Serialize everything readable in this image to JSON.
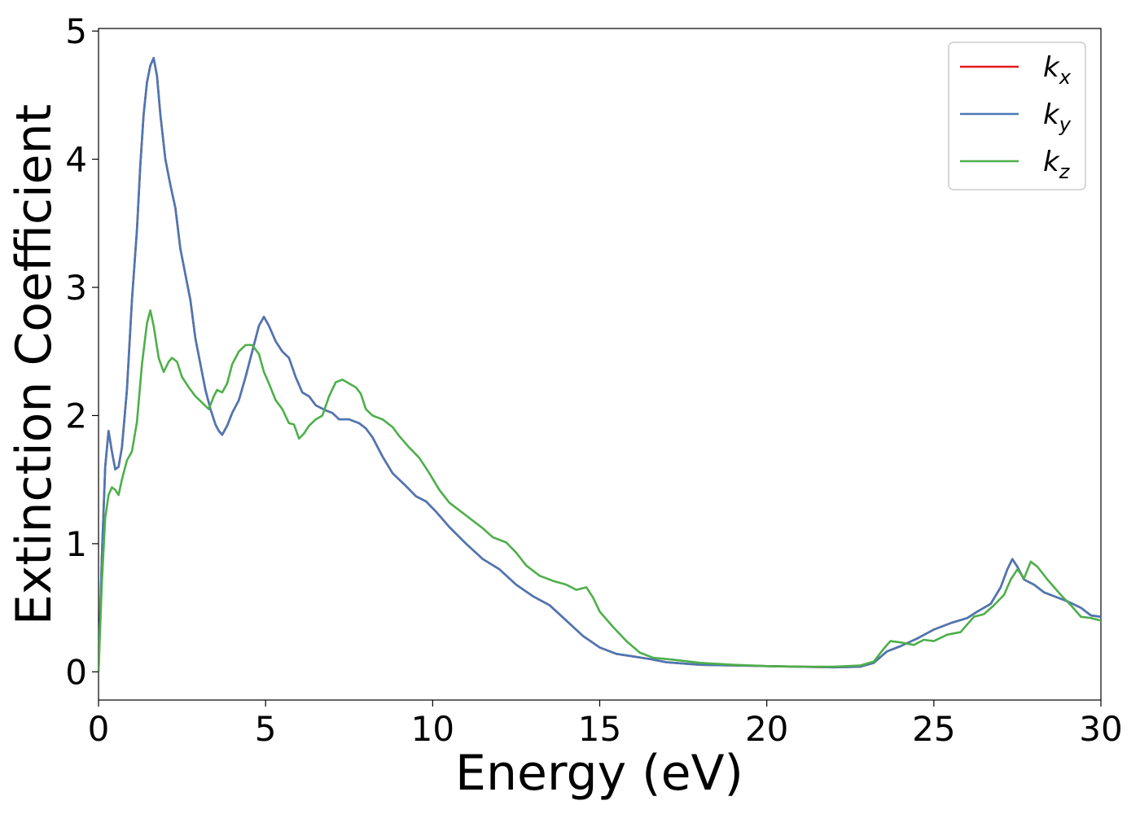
{
  "chart_data": {
    "type": "line",
    "xlabel": "Energy (eV)",
    "ylabel": "Extinction Coefficient",
    "xlim": [
      0,
      30
    ],
    "ylim": [
      -0.22,
      5.02
    ],
    "xticks": [
      0,
      5,
      10,
      15,
      20,
      25,
      30
    ],
    "xtick_labels": [
      "0",
      "5",
      "10",
      "15",
      "20",
      "25",
      "30"
    ],
    "yticks": [
      0,
      1,
      2,
      3,
      4,
      5
    ],
    "ytick_labels": [
      "0",
      "1",
      "2",
      "3",
      "4",
      "5"
    ],
    "grid": false,
    "legend_position": "top-right",
    "series": [
      {
        "name": "k_x",
        "legend_base": "k",
        "legend_sub": "x",
        "color": "#e41a1c",
        "points": [
          [
            0,
            0
          ],
          [
            0.1,
            0.9
          ],
          [
            0.2,
            1.6
          ],
          [
            0.3,
            1.88
          ],
          [
            0.4,
            1.72
          ],
          [
            0.5,
            1.58
          ],
          [
            0.6,
            1.6
          ],
          [
            0.7,
            1.75
          ],
          [
            0.85,
            2.2
          ],
          [
            1.0,
            2.9
          ],
          [
            1.15,
            3.45
          ],
          [
            1.25,
            3.95
          ],
          [
            1.35,
            4.35
          ],
          [
            1.45,
            4.6
          ],
          [
            1.55,
            4.73
          ],
          [
            1.65,
            4.79
          ],
          [
            1.75,
            4.65
          ],
          [
            1.85,
            4.35
          ],
          [
            2.0,
            4.0
          ],
          [
            2.15,
            3.8
          ],
          [
            2.3,
            3.62
          ],
          [
            2.45,
            3.3
          ],
          [
            2.6,
            3.1
          ],
          [
            2.75,
            2.9
          ],
          [
            2.9,
            2.6
          ],
          [
            3.05,
            2.4
          ],
          [
            3.2,
            2.2
          ],
          [
            3.35,
            2.05
          ],
          [
            3.5,
            1.93
          ],
          [
            3.6,
            1.88
          ],
          [
            3.7,
            1.85
          ],
          [
            3.85,
            1.92
          ],
          [
            4.0,
            2.02
          ],
          [
            4.2,
            2.12
          ],
          [
            4.4,
            2.3
          ],
          [
            4.6,
            2.5
          ],
          [
            4.8,
            2.7
          ],
          [
            4.95,
            2.77
          ],
          [
            5.1,
            2.7
          ],
          [
            5.3,
            2.58
          ],
          [
            5.5,
            2.5
          ],
          [
            5.7,
            2.45
          ],
          [
            5.9,
            2.3
          ],
          [
            6.1,
            2.18
          ],
          [
            6.3,
            2.15
          ],
          [
            6.5,
            2.08
          ],
          [
            6.8,
            2.04
          ],
          [
            7.0,
            2.02
          ],
          [
            7.2,
            1.97
          ],
          [
            7.5,
            1.97
          ],
          [
            7.8,
            1.94
          ],
          [
            8.0,
            1.9
          ],
          [
            8.2,
            1.83
          ],
          [
            8.5,
            1.68
          ],
          [
            8.8,
            1.55
          ],
          [
            9.2,
            1.45
          ],
          [
            9.5,
            1.37
          ],
          [
            9.8,
            1.33
          ],
          [
            10.1,
            1.25
          ],
          [
            10.5,
            1.13
          ],
          [
            11.0,
            1.0
          ],
          [
            11.5,
            0.88
          ],
          [
            12.0,
            0.8
          ],
          [
            12.5,
            0.68
          ],
          [
            13.0,
            0.59
          ],
          [
            13.5,
            0.52
          ],
          [
            14.0,
            0.4
          ],
          [
            14.5,
            0.28
          ],
          [
            15.0,
            0.19
          ],
          [
            15.5,
            0.14
          ],
          [
            16.0,
            0.12
          ],
          [
            16.5,
            0.1
          ],
          [
            17.0,
            0.075
          ],
          [
            18.0,
            0.055
          ],
          [
            19.0,
            0.05
          ],
          [
            20.0,
            0.045
          ],
          [
            21.0,
            0.04
          ],
          [
            22.0,
            0.035
          ],
          [
            22.8,
            0.04
          ],
          [
            23.2,
            0.07
          ],
          [
            23.6,
            0.16
          ],
          [
            24.0,
            0.2
          ],
          [
            24.5,
            0.26
          ],
          [
            25.0,
            0.33
          ],
          [
            25.5,
            0.38
          ],
          [
            26.0,
            0.42
          ],
          [
            26.3,
            0.47
          ],
          [
            26.7,
            0.53
          ],
          [
            27.0,
            0.66
          ],
          [
            27.2,
            0.8
          ],
          [
            27.35,
            0.88
          ],
          [
            27.5,
            0.82
          ],
          [
            27.7,
            0.72
          ],
          [
            28.0,
            0.68
          ],
          [
            28.3,
            0.62
          ],
          [
            28.7,
            0.58
          ],
          [
            29.0,
            0.55
          ],
          [
            29.4,
            0.5
          ],
          [
            29.7,
            0.44
          ],
          [
            30.0,
            0.43
          ]
        ]
      },
      {
        "name": "k_y",
        "legend_base": "k",
        "legend_sub": "y",
        "color": "#4a78b4",
        "points": [
          [
            0,
            0
          ],
          [
            0.1,
            0.9
          ],
          [
            0.2,
            1.6
          ],
          [
            0.3,
            1.88
          ],
          [
            0.4,
            1.72
          ],
          [
            0.5,
            1.58
          ],
          [
            0.6,
            1.6
          ],
          [
            0.7,
            1.75
          ],
          [
            0.85,
            2.2
          ],
          [
            1.0,
            2.9
          ],
          [
            1.15,
            3.45
          ],
          [
            1.25,
            3.95
          ],
          [
            1.35,
            4.35
          ],
          [
            1.45,
            4.6
          ],
          [
            1.55,
            4.73
          ],
          [
            1.65,
            4.79
          ],
          [
            1.75,
            4.65
          ],
          [
            1.85,
            4.35
          ],
          [
            2.0,
            4.0
          ],
          [
            2.15,
            3.8
          ],
          [
            2.3,
            3.62
          ],
          [
            2.45,
            3.3
          ],
          [
            2.6,
            3.1
          ],
          [
            2.75,
            2.9
          ],
          [
            2.9,
            2.6
          ],
          [
            3.05,
            2.4
          ],
          [
            3.2,
            2.2
          ],
          [
            3.35,
            2.05
          ],
          [
            3.5,
            1.93
          ],
          [
            3.6,
            1.88
          ],
          [
            3.7,
            1.85
          ],
          [
            3.85,
            1.92
          ],
          [
            4.0,
            2.02
          ],
          [
            4.2,
            2.12
          ],
          [
            4.4,
            2.3
          ],
          [
            4.6,
            2.5
          ],
          [
            4.8,
            2.7
          ],
          [
            4.95,
            2.77
          ],
          [
            5.1,
            2.7
          ],
          [
            5.3,
            2.58
          ],
          [
            5.5,
            2.5
          ],
          [
            5.7,
            2.45
          ],
          [
            5.9,
            2.3
          ],
          [
            6.1,
            2.18
          ],
          [
            6.3,
            2.15
          ],
          [
            6.5,
            2.08
          ],
          [
            6.8,
            2.04
          ],
          [
            7.0,
            2.02
          ],
          [
            7.2,
            1.97
          ],
          [
            7.5,
            1.97
          ],
          [
            7.8,
            1.94
          ],
          [
            8.0,
            1.9
          ],
          [
            8.2,
            1.83
          ],
          [
            8.5,
            1.68
          ],
          [
            8.8,
            1.55
          ],
          [
            9.2,
            1.45
          ],
          [
            9.5,
            1.37
          ],
          [
            9.8,
            1.33
          ],
          [
            10.1,
            1.25
          ],
          [
            10.5,
            1.13
          ],
          [
            11.0,
            1.0
          ],
          [
            11.5,
            0.88
          ],
          [
            12.0,
            0.8
          ],
          [
            12.5,
            0.68
          ],
          [
            13.0,
            0.59
          ],
          [
            13.5,
            0.52
          ],
          [
            14.0,
            0.4
          ],
          [
            14.5,
            0.28
          ],
          [
            15.0,
            0.19
          ],
          [
            15.5,
            0.14
          ],
          [
            16.0,
            0.12
          ],
          [
            16.5,
            0.1
          ],
          [
            17.0,
            0.075
          ],
          [
            18.0,
            0.055
          ],
          [
            19.0,
            0.05
          ],
          [
            20.0,
            0.045
          ],
          [
            21.0,
            0.04
          ],
          [
            22.0,
            0.035
          ],
          [
            22.8,
            0.04
          ],
          [
            23.2,
            0.07
          ],
          [
            23.6,
            0.16
          ],
          [
            24.0,
            0.2
          ],
          [
            24.5,
            0.26
          ],
          [
            25.0,
            0.33
          ],
          [
            25.5,
            0.38
          ],
          [
            26.0,
            0.42
          ],
          [
            26.3,
            0.47
          ],
          [
            26.7,
            0.53
          ],
          [
            27.0,
            0.66
          ],
          [
            27.2,
            0.8
          ],
          [
            27.35,
            0.88
          ],
          [
            27.5,
            0.82
          ],
          [
            27.7,
            0.72
          ],
          [
            28.0,
            0.68
          ],
          [
            28.3,
            0.62
          ],
          [
            28.7,
            0.58
          ],
          [
            29.0,
            0.55
          ],
          [
            29.4,
            0.5
          ],
          [
            29.7,
            0.44
          ],
          [
            30.0,
            0.43
          ]
        ]
      },
      {
        "name": "k_z",
        "legend_base": "k",
        "legend_sub": "z",
        "color": "#4daf4a",
        "points": [
          [
            0,
            0
          ],
          [
            0.1,
            0.7
          ],
          [
            0.2,
            1.2
          ],
          [
            0.3,
            1.38
          ],
          [
            0.4,
            1.44
          ],
          [
            0.5,
            1.42
          ],
          [
            0.6,
            1.38
          ],
          [
            0.7,
            1.5
          ],
          [
            0.85,
            1.65
          ],
          [
            1.0,
            1.72
          ],
          [
            1.15,
            1.95
          ],
          [
            1.3,
            2.4
          ],
          [
            1.45,
            2.72
          ],
          [
            1.55,
            2.82
          ],
          [
            1.65,
            2.7
          ],
          [
            1.8,
            2.45
          ],
          [
            1.95,
            2.34
          ],
          [
            2.1,
            2.42
          ],
          [
            2.2,
            2.45
          ],
          [
            2.35,
            2.42
          ],
          [
            2.5,
            2.3
          ],
          [
            2.7,
            2.22
          ],
          [
            2.9,
            2.15
          ],
          [
            3.1,
            2.1
          ],
          [
            3.3,
            2.05
          ],
          [
            3.45,
            2.15
          ],
          [
            3.55,
            2.2
          ],
          [
            3.7,
            2.18
          ],
          [
            3.85,
            2.25
          ],
          [
            4.0,
            2.4
          ],
          [
            4.2,
            2.5
          ],
          [
            4.4,
            2.55
          ],
          [
            4.6,
            2.55
          ],
          [
            4.8,
            2.48
          ],
          [
            4.95,
            2.34
          ],
          [
            5.1,
            2.25
          ],
          [
            5.3,
            2.12
          ],
          [
            5.5,
            2.05
          ],
          [
            5.7,
            1.94
          ],
          [
            5.85,
            1.93
          ],
          [
            6.0,
            1.82
          ],
          [
            6.15,
            1.86
          ],
          [
            6.3,
            1.92
          ],
          [
            6.5,
            1.97
          ],
          [
            6.7,
            2.0
          ],
          [
            6.9,
            2.15
          ],
          [
            7.1,
            2.26
          ],
          [
            7.3,
            2.28
          ],
          [
            7.5,
            2.25
          ],
          [
            7.7,
            2.22
          ],
          [
            7.85,
            2.17
          ],
          [
            8.0,
            2.05
          ],
          [
            8.2,
            2.0
          ],
          [
            8.5,
            1.97
          ],
          [
            8.8,
            1.91
          ],
          [
            9.0,
            1.84
          ],
          [
            9.3,
            1.75
          ],
          [
            9.6,
            1.67
          ],
          [
            9.9,
            1.55
          ],
          [
            10.2,
            1.42
          ],
          [
            10.5,
            1.32
          ],
          [
            11.0,
            1.22
          ],
          [
            11.5,
            1.12
          ],
          [
            11.8,
            1.05
          ],
          [
            12.2,
            1.01
          ],
          [
            12.5,
            0.93
          ],
          [
            12.8,
            0.83
          ],
          [
            13.2,
            0.75
          ],
          [
            13.6,
            0.71
          ],
          [
            14.0,
            0.68
          ],
          [
            14.3,
            0.64
          ],
          [
            14.6,
            0.66
          ],
          [
            14.8,
            0.58
          ],
          [
            15.0,
            0.47
          ],
          [
            15.4,
            0.35
          ],
          [
            15.8,
            0.24
          ],
          [
            16.2,
            0.15
          ],
          [
            16.6,
            0.11
          ],
          [
            17.2,
            0.095
          ],
          [
            18.0,
            0.07
          ],
          [
            19.0,
            0.055
          ],
          [
            20.0,
            0.045
          ],
          [
            21.0,
            0.04
          ],
          [
            22.0,
            0.04
          ],
          [
            22.8,
            0.05
          ],
          [
            23.2,
            0.08
          ],
          [
            23.5,
            0.18
          ],
          [
            23.7,
            0.24
          ],
          [
            24.0,
            0.23
          ],
          [
            24.4,
            0.21
          ],
          [
            24.7,
            0.25
          ],
          [
            25.0,
            0.24
          ],
          [
            25.4,
            0.29
          ],
          [
            25.8,
            0.31
          ],
          [
            26.2,
            0.43
          ],
          [
            26.5,
            0.45
          ],
          [
            26.8,
            0.52
          ],
          [
            27.1,
            0.6
          ],
          [
            27.3,
            0.72
          ],
          [
            27.5,
            0.8
          ],
          [
            27.7,
            0.73
          ],
          [
            27.9,
            0.86
          ],
          [
            28.1,
            0.82
          ],
          [
            28.4,
            0.72
          ],
          [
            28.8,
            0.6
          ],
          [
            29.1,
            0.52
          ],
          [
            29.4,
            0.43
          ],
          [
            29.7,
            0.42
          ],
          [
            30.0,
            0.4
          ]
        ]
      }
    ]
  }
}
